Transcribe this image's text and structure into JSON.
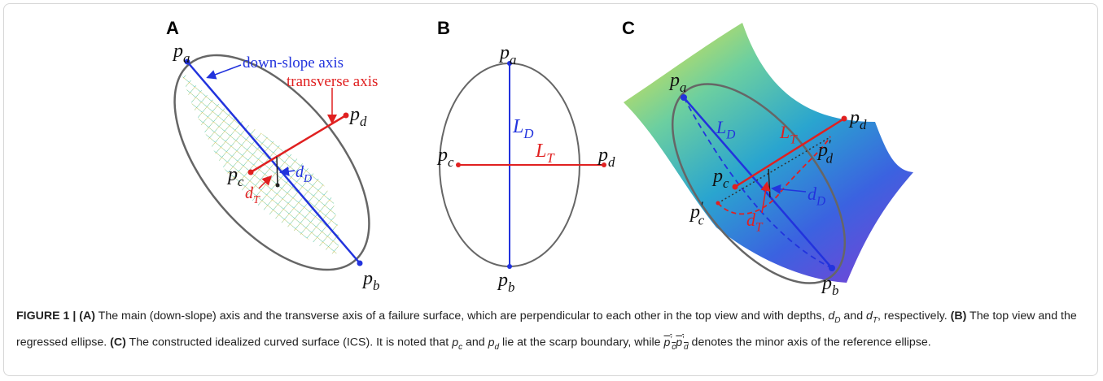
{
  "panel_a": {
    "label": "A",
    "p_a": {
      "base": "p",
      "sub": "a"
    },
    "p_b": {
      "base": "p",
      "sub": "b"
    },
    "p_c": {
      "base": "p",
      "sub": "c"
    },
    "p_d": {
      "base": "p",
      "sub": "d"
    },
    "down_slope_axis": "down-slope axis",
    "transverse_axis": "transverse axis",
    "d_D": {
      "base": "d",
      "sub": "D"
    },
    "d_T": {
      "base": "d",
      "sub": "T"
    }
  },
  "panel_b": {
    "label": "B",
    "p_a": {
      "base": "p",
      "sub": "a"
    },
    "p_b": {
      "base": "p",
      "sub": "b"
    },
    "p_c": {
      "base": "p",
      "sub": "c"
    },
    "p_d": {
      "base": "p",
      "sub": "d"
    },
    "L_D": {
      "base": "L",
      "sub": "D"
    },
    "L_T": {
      "base": "L",
      "sub": "T"
    }
  },
  "panel_c": {
    "label": "C",
    "p_a": {
      "base": "p",
      "sub": "a"
    },
    "p_b": {
      "base": "p",
      "sub": "b"
    },
    "p_c": {
      "base": "p",
      "sub": "c"
    },
    "p_d": {
      "base": "p",
      "sub": "d"
    },
    "p_c_prime": {
      "base": "p",
      "sup": "′",
      "sub": "c"
    },
    "p_d_prime": {
      "base": "p",
      "sup": "′",
      "sub": "d"
    },
    "L_D": {
      "base": "L",
      "sub": "D"
    },
    "L_T": {
      "base": "L",
      "sub": "T"
    },
    "d_D": {
      "base": "d",
      "sub": "D"
    },
    "d_T": {
      "base": "d",
      "sub": "T"
    }
  },
  "caption": [
    {
      "bold": "FIGURE 1 | (A)"
    },
    {
      "text": " The main (down-slope) axis and the transverse axis of a failure surface, which are perpendicular to each other in the top view and with depths, "
    },
    {
      "base": "d",
      "sub": "D"
    },
    {
      "text": " and "
    },
    {
      "base": "d",
      "sub": "T"
    },
    {
      "text": ", respectively. "
    },
    {
      "bold": "(B)"
    },
    {
      "text": " The top view and the regressed ellipse. "
    },
    {
      "bold": "(C)"
    },
    {
      "text": " The constructed idealized curved surface (ICS). It is noted that "
    },
    {
      "base": "p",
      "sub": "c"
    },
    {
      "text": " and "
    },
    {
      "base": "p",
      "sub": "d"
    },
    {
      "text": " lie at the scarp boundary, while "
    },
    {
      "overline": [
        {
          "base": "p",
          "sup": "′",
          "sub": "c"
        },
        {
          "base": "p",
          "sup": "′",
          "sub": "d"
        }
      ]
    },
    {
      "text": " denotes the minor axis of the reference ellipse."
    }
  ]
}
